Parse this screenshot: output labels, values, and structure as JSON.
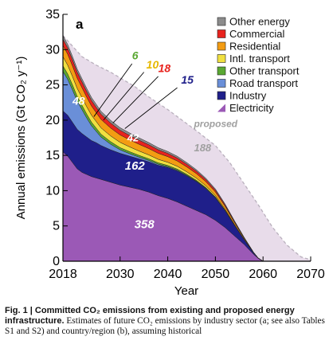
{
  "chart_data": {
    "type": "area",
    "panel_label": "a",
    "xlabel": "Year",
    "ylabel": "Annual emissions (Gt CO₂ y⁻¹)",
    "xlim": [
      2018,
      2070
    ],
    "ylim": [
      0,
      35
    ],
    "x_ticks": [
      2018,
      2030,
      2040,
      2050,
      2060,
      2070
    ],
    "y_ticks": [
      0,
      5,
      10,
      15,
      20,
      25,
      30,
      35
    ],
    "legend_position": "top-right",
    "x": [
      2018,
      2019,
      2020,
      2021,
      2022,
      2023,
      2024,
      2025,
      2026,
      2028,
      2030,
      2032,
      2034,
      2036,
      2038,
      2040,
      2042,
      2044,
      2046,
      2048,
      2050,
      2052,
      2054,
      2056,
      2058,
      2059,
      2060
    ],
    "series": [
      {
        "name": "Electricity",
        "color": "#9b59b6",
        "values": [
          15.5,
          14.9,
          14.0,
          13.1,
          12.6,
          12.3,
          12.0,
          11.8,
          11.6,
          11.2,
          10.8,
          10.5,
          10.2,
          9.8,
          9.3,
          8.9,
          8.4,
          7.8,
          7.2,
          6.6,
          5.8,
          4.8,
          3.6,
          2.4,
          1.0,
          0.4,
          0.0
        ]
      },
      {
        "name": "Industry",
        "color": "#1f1f8a",
        "values": [
          5.8,
          5.8,
          5.7,
          5.6,
          5.5,
          5.3,
          5.1,
          5.0,
          4.8,
          4.6,
          4.5,
          4.4,
          4.3,
          4.3,
          4.3,
          4.4,
          4.4,
          4.3,
          4.1,
          3.7,
          3.2,
          2.4,
          1.5,
          0.7,
          0.2,
          0.05,
          0.0
        ]
      },
      {
        "name": "Road transport",
        "color": "#6a8fd8",
        "values": [
          5.6,
          5.1,
          4.6,
          4.0,
          3.4,
          2.7,
          2.1,
          1.6,
          1.2,
          0.8,
          0.5,
          0.35,
          0.25,
          0.2,
          0.15,
          0.1,
          0.1,
          0.08,
          0.06,
          0.05,
          0.04,
          0.03,
          0.02,
          0.01,
          0.0,
          0.0,
          0.0
        ]
      },
      {
        "name": "Other transport",
        "color": "#5aa832",
        "values": [
          0.8,
          0.75,
          0.7,
          0.65,
          0.6,
          0.55,
          0.5,
          0.45,
          0.4,
          0.35,
          0.3,
          0.28,
          0.25,
          0.22,
          0.2,
          0.18,
          0.16,
          0.14,
          0.12,
          0.1,
          0.08,
          0.05,
          0.03,
          0.01,
          0.0,
          0.0,
          0.0
        ]
      },
      {
        "name": "Intl. transport",
        "color": "#f0e040",
        "values": [
          1.3,
          1.25,
          1.2,
          1.15,
          1.1,
          1.05,
          1.0,
          0.95,
          0.9,
          0.82,
          0.75,
          0.68,
          0.62,
          0.56,
          0.5,
          0.45,
          0.4,
          0.35,
          0.3,
          0.25,
          0.2,
          0.14,
          0.08,
          0.03,
          0.0,
          0.0,
          0.0
        ]
      },
      {
        "name": "Residential",
        "color": "#f39c12",
        "values": [
          1.6,
          1.55,
          1.5,
          1.45,
          1.4,
          1.35,
          1.3,
          1.25,
          1.2,
          1.12,
          1.05,
          1.0,
          0.95,
          0.9,
          0.85,
          0.8,
          0.75,
          0.7,
          0.65,
          0.58,
          0.5,
          0.4,
          0.28,
          0.15,
          0.05,
          0.0,
          0.0
        ]
      },
      {
        "name": "Commercial",
        "color": "#e8231e",
        "values": [
          0.9,
          0.88,
          0.86,
          0.84,
          0.82,
          0.8,
          0.78,
          0.76,
          0.74,
          0.7,
          0.66,
          0.62,
          0.58,
          0.54,
          0.5,
          0.46,
          0.42,
          0.38,
          0.34,
          0.3,
          0.26,
          0.2,
          0.14,
          0.08,
          0.02,
          0.0,
          0.0
        ]
      },
      {
        "name": "Other energy",
        "color": "#8c8c8c",
        "values": [
          0.5,
          0.5,
          0.48,
          0.46,
          0.45,
          0.44,
          0.43,
          0.42,
          0.41,
          0.39,
          0.37,
          0.35,
          0.33,
          0.31,
          0.29,
          0.27,
          0.25,
          0.23,
          0.21,
          0.19,
          0.17,
          0.13,
          0.09,
          0.05,
          0.01,
          0.0,
          0.0
        ]
      }
    ],
    "proposed": {
      "label": "proposed",
      "color": "#e8dcea",
      "x": [
        2018,
        2020,
        2022,
        2025,
        2028,
        2030,
        2033,
        2036,
        2040,
        2043,
        2046,
        2050,
        2053,
        2056,
        2059,
        2062,
        2065,
        2068,
        2070
      ],
      "values": [
        32.0,
        30.5,
        29.0,
        27.8,
        26.8,
        26.0,
        24.8,
        23.3,
        21.5,
        20.0,
        18.5,
        16.4,
        14.0,
        11.0,
        8.0,
        4.8,
        2.3,
        0.6,
        0.2
      ]
    },
    "annotations": [
      {
        "text": "48",
        "x": 2020.0,
        "y": 22.2,
        "color": "#ffffff",
        "size": 14
      },
      {
        "text": "162",
        "x": 2031.0,
        "y": 13.0,
        "color": "#ffffff",
        "size": 15
      },
      {
        "text": "358",
        "x": 2033.0,
        "y": 4.7,
        "color": "#ffffff",
        "size": 15
      },
      {
        "text": "42",
        "x": 2031.5,
        "y": 17.0,
        "color": "#ffffff",
        "size": 13
      },
      {
        "text": "188",
        "x": 2045.5,
        "y": 15.6,
        "color": "#a0a0a0",
        "size": 13
      },
      {
        "text": "6",
        "x": 2032.5,
        "y": 28.6,
        "color": "#5aa832",
        "size": 14
      },
      {
        "text": "10",
        "x": 2035.5,
        "y": 27.3,
        "color": "#e6b800",
        "size": 14
      },
      {
        "text": "18",
        "x": 2038.0,
        "y": 26.8,
        "color": "#e8231e",
        "size": 14
      },
      {
        "text": "15",
        "x": 2042.8,
        "y": 25.2,
        "color": "#1f1f8a",
        "size": 14
      }
    ],
    "leader_lines": [
      {
        "from": [
          2032.5,
          28.0
        ],
        "to": [
          2024.5,
          20.5
        ]
      },
      {
        "from": [
          2035.0,
          26.8
        ],
        "to": [
          2026.5,
          20.0
        ]
      },
      {
        "from": [
          2038.0,
          26.2
        ],
        "to": [
          2028.5,
          19.6
        ]
      },
      {
        "from": [
          2042.0,
          24.6
        ],
        "to": [
          2031.0,
          18.8
        ]
      }
    ]
  },
  "caption": {
    "bold": "Fig. 1 | Committed CO₂ emissions from existing and proposed energy infrastructure.",
    "body": " Estimates of future CO₂ emissions by industry sector (a; see also Tables S1 and S2) and country/region (b), assuming historical"
  }
}
